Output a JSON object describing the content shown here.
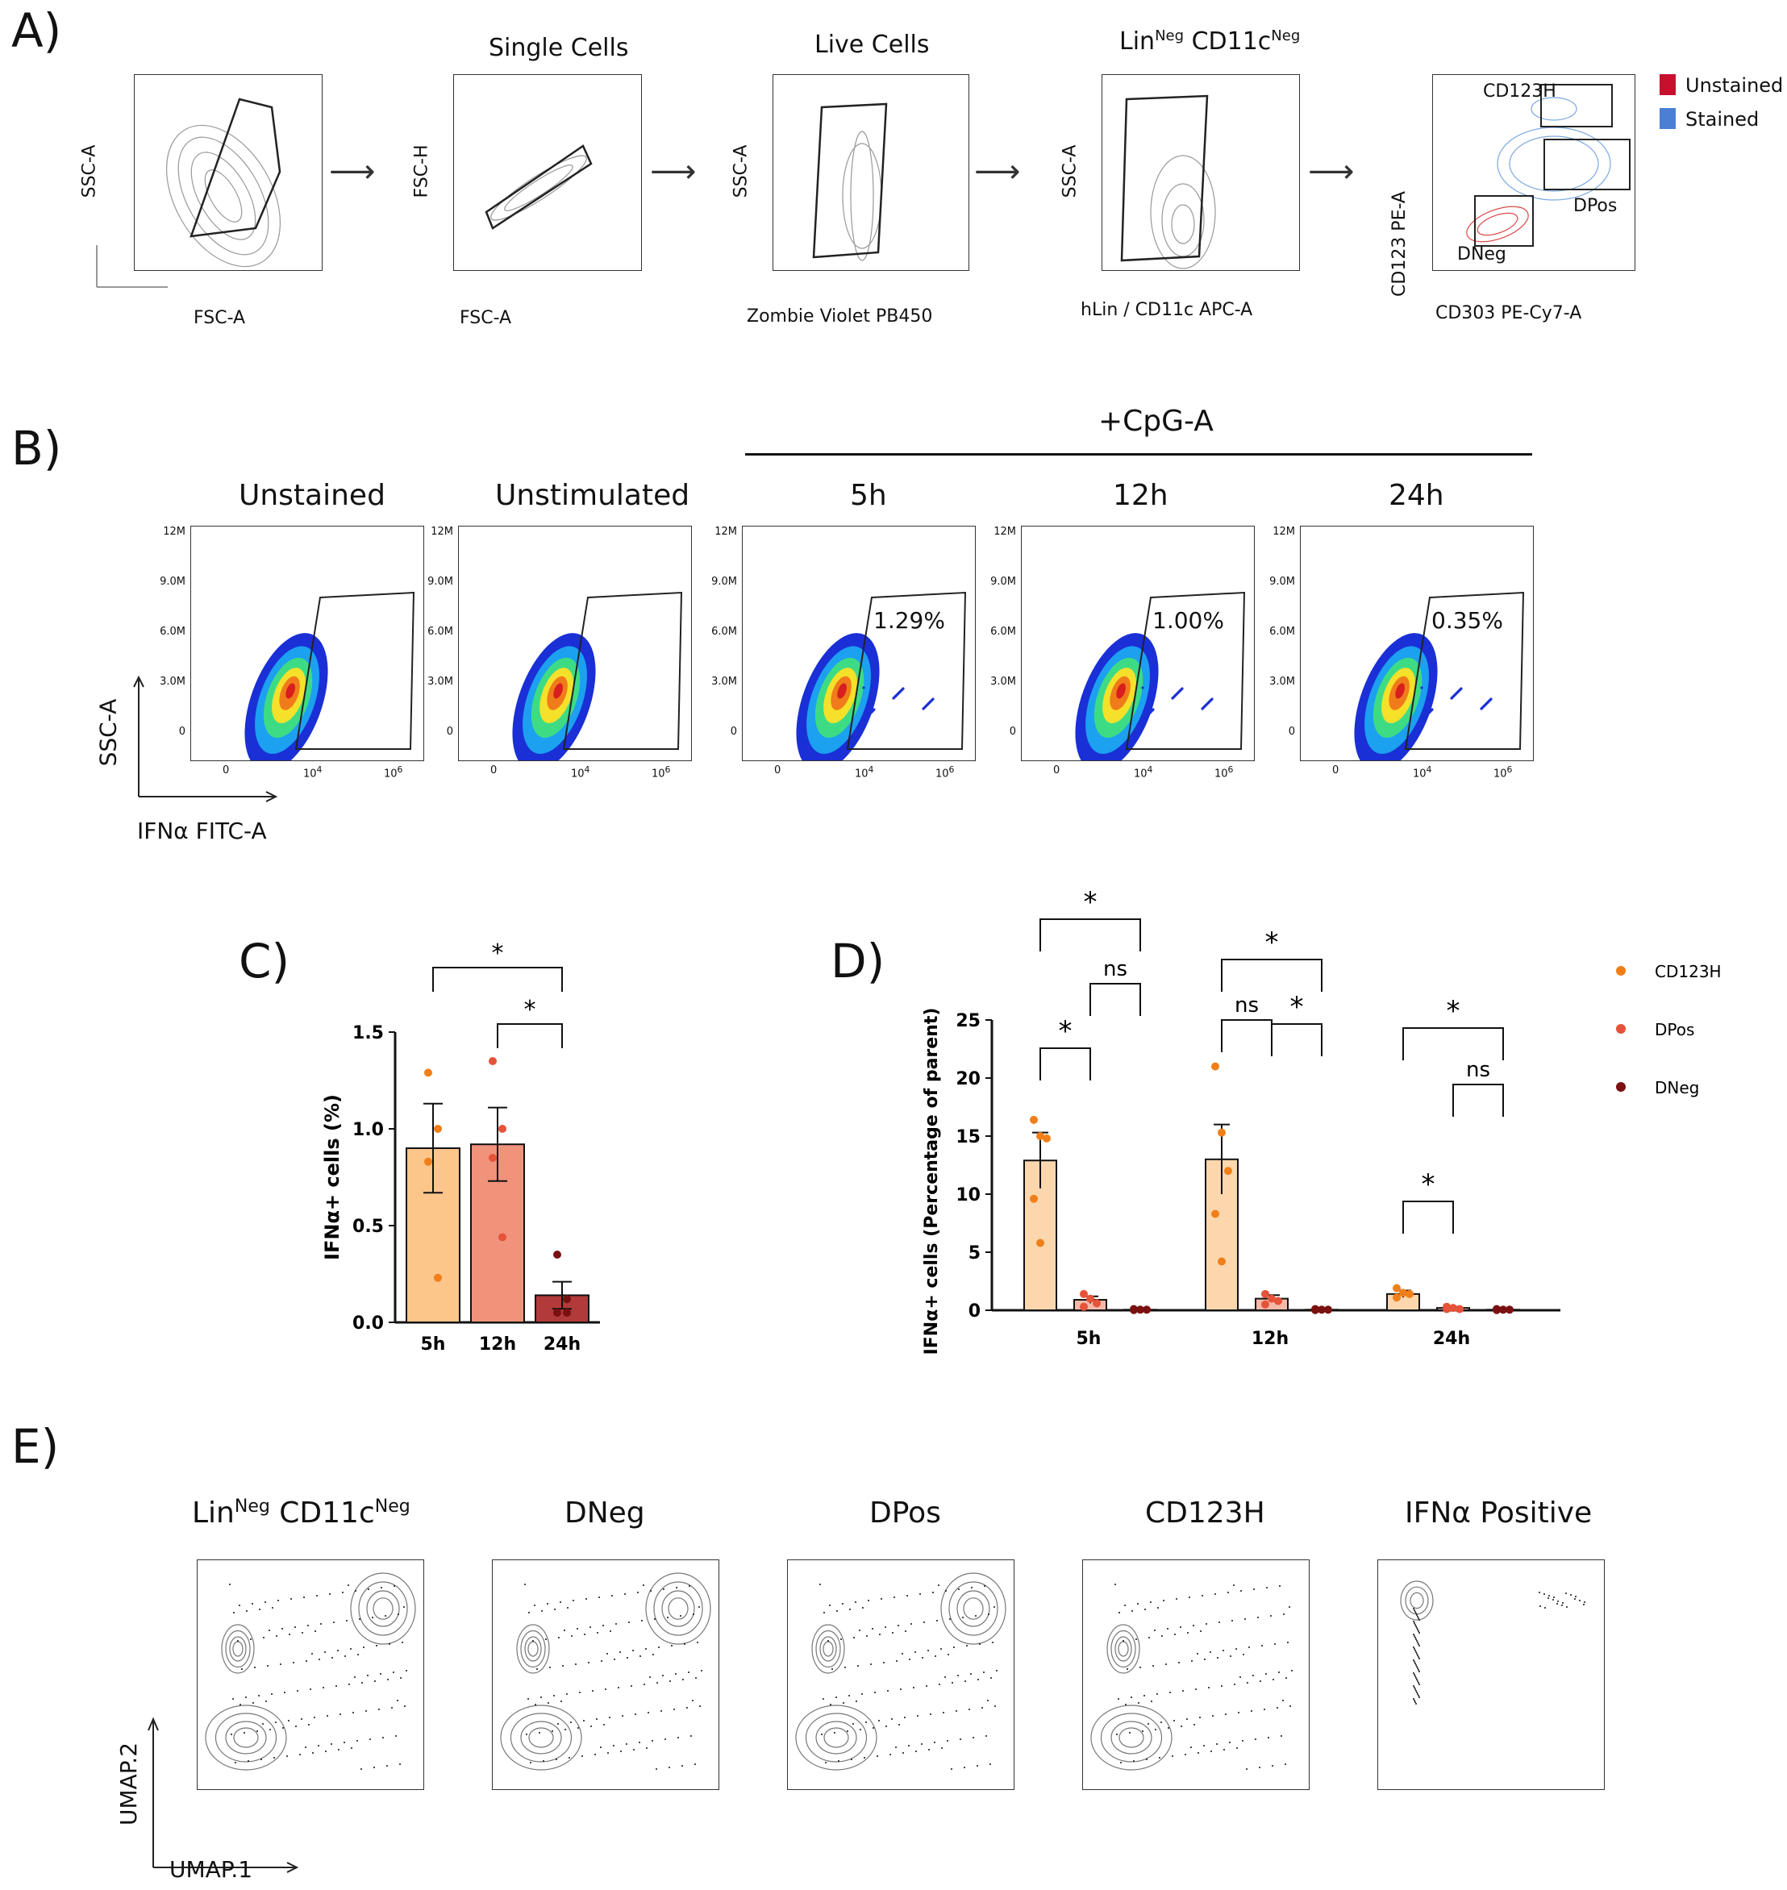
{
  "panels": {
    "A": {
      "label": "A)",
      "plots": [
        {
          "title": "",
          "title_sup": "",
          "title2": "",
          "title2_sup": "",
          "xlabel": "FSC-A",
          "ylabel": "SSC-A"
        },
        {
          "title": "Single Cells",
          "title_sup": "",
          "title2": "",
          "title2_sup": "",
          "xlabel": "FSC-A",
          "ylabel": "FSC-H"
        },
        {
          "title": "Live Cells",
          "title_sup": "",
          "title2": "",
          "title2_sup": "",
          "xlabel": "Zombie Violet PB450",
          "ylabel": "SSC-A"
        },
        {
          "title": "Lin",
          "title_sup": "Neg",
          "title2": "CD11c",
          "title2_sup": "Neg",
          "xlabel": "hLin / CD11c APC-A",
          "ylabel": "SSC-A"
        },
        {
          "title": "",
          "title_sup": "",
          "title2": "",
          "title2_sup": "",
          "xlabel": "CD303 PE-Cy7-A",
          "ylabel": "CD123 PE-A"
        }
      ],
      "gates": {
        "cd123h": "CD123H",
        "dpos": "DPos",
        "dneg": "DNeg"
      },
      "legend": [
        {
          "label": "Unstained",
          "color": "#c8102e"
        },
        {
          "label": "Stained",
          "color": "#4a7fd4"
        }
      ]
    },
    "B": {
      "label": "B)",
      "treatment": "+CpG-A",
      "plots": [
        {
          "title": "Unstained",
          "pct": ""
        },
        {
          "title": "Unstimulated",
          "pct": ""
        },
        {
          "title": "5h",
          "pct": "1.29%"
        },
        {
          "title": "12h",
          "pct": "1.00%"
        },
        {
          "title": "24h",
          "pct": "0.35%"
        }
      ],
      "ylabel": "SSC-A",
      "xlabel": "IFNα FITC-A",
      "yticks": [
        "12M",
        "9.0M",
        "6.0M",
        "3.0M",
        "0"
      ],
      "xticks": [
        "0",
        "10",
        "10"
      ],
      "xtick_sup": [
        "",
        "4",
        "6"
      ]
    },
    "C": {
      "label": "C)"
    },
    "D": {
      "label": "D)"
    },
    "E": {
      "label": "E)",
      "plots": [
        {
          "title": "Lin",
          "title_sup": "Neg",
          "title2": "CD11c",
          "title2_sup": "Neg"
        },
        {
          "title": "DNeg",
          "title_sup": "",
          "title2": "",
          "title2_sup": ""
        },
        {
          "title": "DPos",
          "title_sup": "",
          "title2": "",
          "title2_sup": ""
        },
        {
          "title": "CD123H",
          "title_sup": "",
          "title2": "",
          "title2_sup": ""
        },
        {
          "title": "IFNα Positive",
          "title_sup": "",
          "title2": "",
          "title2_sup": ""
        }
      ],
      "xlabel": "UMAP.1",
      "ylabel": "UMAP.2"
    }
  },
  "chart_data": [
    {
      "id": "C",
      "type": "bar",
      "categories": [
        "5h",
        "12h",
        "24h"
      ],
      "values": [
        0.9,
        0.92,
        0.14
      ],
      "errors": [
        0.23,
        0.19,
        0.07
      ],
      "points": [
        [
          1.29,
          1.0,
          0.83,
          0.23
        ],
        [
          1.35,
          1.0,
          0.85,
          0.44
        ],
        [
          0.35,
          0.12,
          0.05,
          0.05
        ]
      ],
      "colors": [
        "#fcc58a",
        "#f0937a",
        "#b33a3a"
      ],
      "point_colors": [
        "#f07f1a",
        "#e5533a",
        "#7a1010"
      ],
      "ylabel": "IFNα+ cells (%)",
      "ylim": [
        0,
        1.5
      ],
      "yticks": [
        0.0,
        0.5,
        1.0,
        1.5
      ],
      "significance": [
        {
          "from": "5h",
          "to": "24h",
          "label": "*"
        },
        {
          "from": "12h",
          "to": "24h",
          "label": "*"
        }
      ]
    },
    {
      "id": "D",
      "type": "bar",
      "categories": [
        "5h",
        "12h",
        "24h"
      ],
      "series": [
        {
          "name": "CD123H",
          "color": "#f07f1a",
          "fill": "#fcd7ad",
          "values": [
            12.9,
            13.0,
            1.4
          ],
          "errors": [
            2.4,
            3.0,
            0.3
          ],
          "points": [
            [
              16.4,
              15.0,
              14.8,
              9.6,
              5.8
            ],
            [
              21.0,
              15.3,
              12.0,
              8.3,
              4.2
            ],
            [
              1.9,
              1.5,
              1.4,
              1.1
            ]
          ]
        },
        {
          "name": "DPos",
          "color": "#e5533a",
          "fill": "#f5b9a8",
          "values": [
            0.9,
            1.0,
            0.2
          ],
          "errors": [
            0.3,
            0.3,
            0.1
          ],
          "points": [
            [
              1.4,
              1.0,
              0.6,
              0.3
            ],
            [
              1.4,
              1.0,
              0.8,
              0.5
            ],
            [
              0.3,
              0.2,
              0.1,
              0.1
            ]
          ]
        },
        {
          "name": "DNeg",
          "color": "#7a1010",
          "fill": "#a33",
          "values": [
            0.05,
            0.05,
            0.05
          ],
          "errors": [
            0.02,
            0.02,
            0.02
          ],
          "points": [
            [
              0.1,
              0.05,
              0.05,
              0.02
            ],
            [
              0.1,
              0.05,
              0.05,
              0.02
            ],
            [
              0.1,
              0.05,
              0.05,
              0.02
            ]
          ]
        }
      ],
      "ylabel": "IFNα+ cells (Percentage of parent)",
      "ylim": [
        0,
        25
      ],
      "yticks": [
        0,
        5,
        10,
        15,
        20,
        25
      ],
      "significance": [
        {
          "group": "5h",
          "from": "CD123H",
          "to": "DNeg",
          "label": "*"
        },
        {
          "group": "5h",
          "from": "DPos",
          "to": "DNeg",
          "label": "ns"
        },
        {
          "group": "5h",
          "from": "CD123H",
          "to": "DPos",
          "label": "*"
        },
        {
          "group": "12h",
          "from": "CD123H",
          "to": "DNeg",
          "label": "*"
        },
        {
          "group": "12h",
          "from": "CD123H",
          "to": "DPos",
          "label": "ns"
        },
        {
          "group": "12h",
          "from": "DPos",
          "to": "DNeg",
          "label": "*"
        },
        {
          "group": "24h",
          "from": "CD123H",
          "to": "DNeg",
          "label": "*"
        },
        {
          "group": "24h",
          "from": "DPos",
          "to": "DNeg",
          "label": "ns"
        },
        {
          "group": "24h",
          "from": "CD123H",
          "to": "DPos",
          "label": "*"
        }
      ]
    }
  ]
}
